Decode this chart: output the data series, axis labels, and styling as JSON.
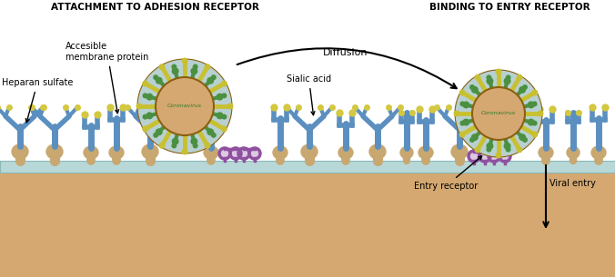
{
  "title_left": "ATTACHMENT TO ADHESION RECEPTOR",
  "title_right": "BINDING TO ENTRY RECEPTOR",
  "label_heparan": "Heparan sulfate",
  "label_membrane": "Accesible\nmembrane protein",
  "label_sialic": "Sialic acid",
  "label_diffusion": "Diffusion",
  "label_entry_receptor": "Entry receptor",
  "label_viral_entry": "Viral entry",
  "color_background": "#ffffff",
  "color_cell_body": "#d4a870",
  "color_membrane_band": "#b8d8d8",
  "color_membrane_band_outline": "#8ab8b8",
  "color_receptor_stem": "#5b8fc0",
  "color_receptor_base": "#c8a870",
  "color_receptor_tip": "#d4c840",
  "color_entry_receptor": "#9050a0",
  "color_virus_core": "#d4a870",
  "color_virus_outline": "#8b6010",
  "color_virus_spike_yellow": "#c8c030",
  "color_virus_spike_green": "#4a9040",
  "color_virus_spike_base": "#b8d0d0",
  "color_text": "#000000",
  "color_corona_text": "#2a7a2a",
  "fig_width": 6.76,
  "fig_height": 3.05,
  "dpi": 100
}
